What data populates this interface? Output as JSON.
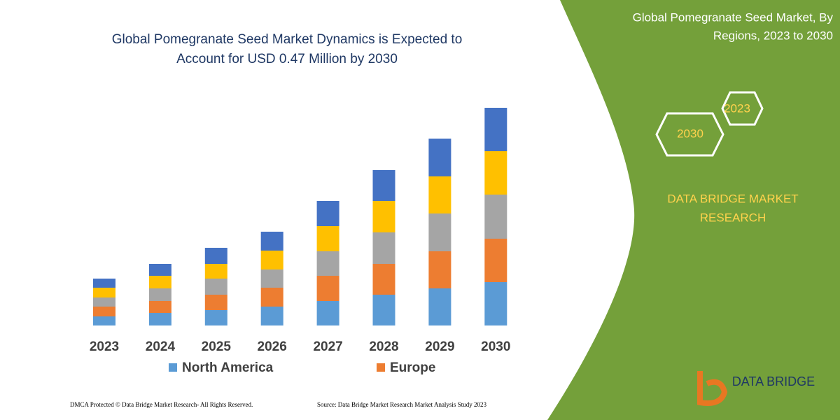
{
  "chart_data": {
    "type": "stacked-bar",
    "title": [
      "Global Pomegranate Seed Market Dynamics is Expected to",
      "Account for USD 0.47 Million by 2030"
    ],
    "categories": [
      "2023",
      "2024",
      "2025",
      "2026",
      "2027",
      "2028",
      "2029",
      "2030"
    ],
    "series": [
      {
        "name": "North America",
        "color": "#5b9bd5",
        "values": [
          13,
          18,
          22,
          27,
          35,
          44,
          53,
          62
        ]
      },
      {
        "name": "Europe",
        "color": "#ed7d31",
        "values": [
          14,
          17,
          22,
          27,
          36,
          44,
          53,
          62
        ]
      },
      {
        "color": "#a5a5a5",
        "values": [
          13,
          18,
          23,
          26,
          35,
          45,
          54,
          63
        ]
      },
      {
        "color": "#ffc000",
        "values": [
          14,
          18,
          21,
          27,
          36,
          45,
          53,
          62
        ]
      },
      {
        "color": "#4472c4",
        "values": [
          13,
          17,
          23,
          27,
          36,
          44,
          54,
          62
        ]
      }
    ]
  },
  "panel": {
    "title": [
      "Global Pomegranate Seed Market, By",
      "Regions, 2023 to 2030"
    ],
    "hexagons": [
      "2023",
      "2030"
    ],
    "brand": [
      "DATA BRIDGE MARKET",
      "RESEARCH"
    ],
    "logo": "DATA BRIDGE"
  },
  "footer": {
    "left": "DMCA Protected © Data Bridge Market Research-  All Rights Reserved.",
    "right": "Source: Data Bridge Market Research  Market Analysis Study 2023"
  }
}
